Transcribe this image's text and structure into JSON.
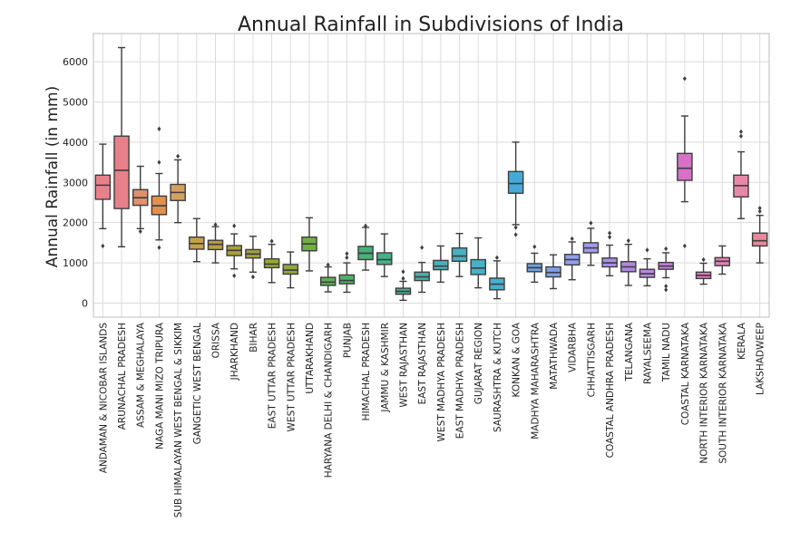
{
  "chart_data": {
    "type": "boxplot",
    "title": "Annual Rainfall in Subdivisions of India",
    "xlabel": "",
    "ylabel": "Annual Rainfall (in mm)",
    "ylim": [
      -350,
      6700
    ],
    "yticks": [
      0,
      1000,
      2000,
      3000,
      4000,
      5000,
      6000
    ],
    "grid": true,
    "categories": [
      "ANDAMAN & NICOBAR ISLANDS",
      "ARUNACHAL PRADESH",
      "ASSAM & MEGHALAYA",
      "NAGA MANI MIZO TRIPURA",
      "SUB HIMALAYAN WEST BENGAL & SIKKIM",
      "GANGETIC WEST BENGAL",
      "ORISSA",
      "JHARKHAND",
      "BIHAR",
      "EAST UTTAR PRADESH",
      "WEST UTTAR PRADESH",
      "UTTARAKHAND",
      "HARYANA DELHI & CHANDIGARH",
      "PUNJAB",
      "HIMACHAL PRADESH",
      "JAMMU & KASHMIR",
      "WEST RAJASTHAN",
      "EAST RAJASTHAN",
      "WEST MADHYA PRADESH",
      "EAST MADHYA PRADESH",
      "GUJARAT REGION",
      "SAURASHTRA & KUTCH",
      "KONKAN & GOA",
      "MADHYA MAHARASHTRA",
      "MATATHWADA",
      "VIDARBHA",
      "CHHATTISGARH",
      "COASTAL ANDHRA PRADESH",
      "TELANGANA",
      "RAYALSEEMA",
      "TAMIL NADU",
      "COASTAL KARNATAKA",
      "NORTH INTERIOR KARNATAKA",
      "SOUTH INTERIOR KARNATAKA",
      "KERALA",
      "LAKSHADWEEP"
    ],
    "colors": [
      "#e8808a",
      "#e8808a",
      "#e0906a",
      "#e0904f",
      "#d4a060",
      "#c8a048",
      "#b8a040",
      "#a8a038",
      "#a0a040",
      "#98a838",
      "#90a838",
      "#70b040",
      "#58b058",
      "#50b068",
      "#48b078",
      "#48b088",
      "#48b098",
      "#48b0a8",
      "#48b0b8",
      "#48b0c0",
      "#48b0c8",
      "#48b0d0",
      "#48a8d8",
      "#70a0e0",
      "#80a0e8",
      "#90a0e8",
      "#a098e8",
      "#a890e8",
      "#b088e0",
      "#b888e0",
      "#c080d8",
      "#d870c8",
      "#e078c0",
      "#e080b8",
      "#e888a8",
      "#e8889a"
    ],
    "series": [
      {
        "q1": 2580,
        "median": 2930,
        "q3": 3180,
        "whisker_low": 1850,
        "whisker_high": 3950,
        "outliers": [
          1420
        ]
      },
      {
        "q1": 2350,
        "median": 3300,
        "q3": 4150,
        "whisker_low": 1400,
        "whisker_high": 6350,
        "outliers": []
      },
      {
        "q1": 2430,
        "median": 2620,
        "q3": 2820,
        "whisker_low": 1850,
        "whisker_high": 3400,
        "outliers": [
          1780
        ]
      },
      {
        "q1": 2200,
        "median": 2420,
        "q3": 2660,
        "whisker_low": 1570,
        "whisker_high": 3220,
        "outliers": [
          1380,
          3500,
          4330
        ]
      },
      {
        "q1": 2550,
        "median": 2750,
        "q3": 2950,
        "whisker_low": 2000,
        "whisker_high": 3560,
        "outliers": [
          3650
        ]
      },
      {
        "q1": 1340,
        "median": 1480,
        "q3": 1640,
        "whisker_low": 1030,
        "whisker_high": 2100,
        "outliers": []
      },
      {
        "q1": 1330,
        "median": 1460,
        "q3": 1560,
        "whisker_low": 1000,
        "whisker_high": 1900,
        "outliers": [
          1950
        ]
      },
      {
        "q1": 1180,
        "median": 1310,
        "q3": 1430,
        "whisker_low": 850,
        "whisker_high": 1720,
        "outliers": [
          680,
          1920
        ]
      },
      {
        "q1": 1120,
        "median": 1220,
        "q3": 1330,
        "whisker_low": 770,
        "whisker_high": 1660,
        "outliers": [
          650
        ]
      },
      {
        "q1": 880,
        "median": 970,
        "q3": 1100,
        "whisker_low": 510,
        "whisker_high": 1460,
        "outliers": [
          1540
        ]
      },
      {
        "q1": 720,
        "median": 820,
        "q3": 960,
        "whisker_low": 380,
        "whisker_high": 1270,
        "outliers": []
      },
      {
        "q1": 1300,
        "median": 1470,
        "q3": 1640,
        "whisker_low": 800,
        "whisker_high": 2120,
        "outliers": []
      },
      {
        "q1": 440,
        "median": 520,
        "q3": 640,
        "whisker_low": 280,
        "whisker_high": 900,
        "outliers": [
          950
        ]
      },
      {
        "q1": 480,
        "median": 560,
        "q3": 700,
        "whisker_low": 270,
        "whisker_high": 1000,
        "outliers": [
          1130,
          1230
        ]
      },
      {
        "q1": 1080,
        "median": 1240,
        "q3": 1410,
        "whisker_low": 820,
        "whisker_high": 1880,
        "outliers": [
          1920
        ]
      },
      {
        "q1": 960,
        "median": 1080,
        "q3": 1250,
        "whisker_low": 660,
        "whisker_high": 1720,
        "outliers": []
      },
      {
        "q1": 220,
        "median": 290,
        "q3": 370,
        "whisker_low": 70,
        "whisker_high": 540,
        "outliers": [
          610,
          780
        ]
      },
      {
        "q1": 560,
        "median": 650,
        "q3": 770,
        "whisker_low": 270,
        "whisker_high": 1010,
        "outliers": [
          1380
        ]
      },
      {
        "q1": 830,
        "median": 920,
        "q3": 1060,
        "whisker_low": 520,
        "whisker_high": 1420,
        "outliers": []
      },
      {
        "q1": 1040,
        "median": 1170,
        "q3": 1370,
        "whisker_low": 660,
        "whisker_high": 1730,
        "outliers": []
      },
      {
        "q1": 710,
        "median": 870,
        "q3": 1080,
        "whisker_low": 380,
        "whisker_high": 1620,
        "outliers": []
      },
      {
        "q1": 330,
        "median": 470,
        "q3": 620,
        "whisker_low": 110,
        "whisker_high": 1050,
        "outliers": [
          1130
        ]
      },
      {
        "q1": 2730,
        "median": 2970,
        "q3": 3270,
        "whisker_low": 1950,
        "whisker_high": 4000,
        "outliers": [
          1700,
          1880
        ]
      },
      {
        "q1": 780,
        "median": 880,
        "q3": 980,
        "whisker_low": 520,
        "whisker_high": 1240,
        "outliers": [
          1400
        ]
      },
      {
        "q1": 650,
        "median": 760,
        "q3": 900,
        "whisker_low": 360,
        "whisker_high": 1200,
        "outliers": []
      },
      {
        "q1": 950,
        "median": 1080,
        "q3": 1210,
        "whisker_low": 580,
        "whisker_high": 1520,
        "outliers": [
          1600
        ]
      },
      {
        "q1": 1250,
        "median": 1370,
        "q3": 1500,
        "whisker_low": 940,
        "whisker_high": 1860,
        "outliers": [
          1990
        ]
      },
      {
        "q1": 900,
        "median": 1000,
        "q3": 1120,
        "whisker_low": 680,
        "whisker_high": 1440,
        "outliers": [
          1640,
          1740
        ]
      },
      {
        "q1": 780,
        "median": 900,
        "q3": 1030,
        "whisker_low": 440,
        "whisker_high": 1460,
        "outliers": [
          1550
        ]
      },
      {
        "q1": 640,
        "median": 730,
        "q3": 840,
        "whisker_low": 430,
        "whisker_high": 1100,
        "outliers": [
          1320
        ]
      },
      {
        "q1": 840,
        "median": 920,
        "q3": 1010,
        "whisker_low": 630,
        "whisker_high": 1250,
        "outliers": [
          330,
          420,
          1350
        ]
      },
      {
        "q1": 3050,
        "median": 3350,
        "q3": 3720,
        "whisker_low": 2520,
        "whisker_high": 4650,
        "outliers": [
          1420,
          5580
        ]
      },
      {
        "q1": 610,
        "median": 690,
        "q3": 770,
        "whisker_low": 470,
        "whisker_high": 990,
        "outliers": [
          1080
        ]
      },
      {
        "q1": 930,
        "median": 1040,
        "q3": 1130,
        "whisker_low": 720,
        "whisker_high": 1420,
        "outliers": []
      },
      {
        "q1": 2640,
        "median": 2920,
        "q3": 3180,
        "whisker_low": 2100,
        "whisker_high": 3760,
        "outliers": [
          4150,
          4260
        ]
      },
      {
        "q1": 1420,
        "median": 1550,
        "q3": 1740,
        "whisker_low": 1000,
        "whisker_high": 2180,
        "outliers": [
          2280,
          2360
        ]
      }
    ]
  }
}
